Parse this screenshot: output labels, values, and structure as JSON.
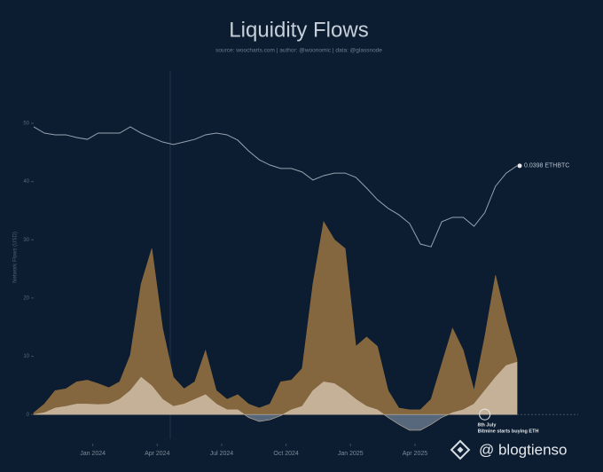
{
  "chart_data": {
    "type": "area",
    "title": "Liquidity Flows",
    "subtitle": "source: woocharts.com | author: @woonomic | data: @glassnode",
    "y_label": "Network Flows (USD)",
    "x": [
      -2.75,
      -2.25,
      -1.75,
      -1.25,
      -0.75,
      -0.25,
      0.25,
      0.75,
      1.25,
      1.75,
      2.25,
      2.75,
      3.25,
      3.75,
      4.25,
      4.75,
      5.25,
      5.75,
      6.25,
      6.75,
      7.25,
      7.75,
      8.25,
      8.75,
      9.25,
      9.75,
      10.25,
      10.75,
      11.25,
      11.75,
      12.25,
      12.75,
      13.25,
      13.75,
      14.25,
      14.75,
      15.25,
      15.75,
      16.25,
      16.75,
      17.25,
      17.75,
      18.25,
      18.75,
      19.25,
      19.75
    ],
    "xlim": [
      -2.75,
      19.75
    ],
    "xticks": [
      {
        "value": 0,
        "label": "Jan 2024"
      },
      {
        "value": 3,
        "label": "Apr 2024"
      },
      {
        "value": 6,
        "label": "Jul 2024"
      },
      {
        "value": 9,
        "label": "Oct 2024"
      },
      {
        "value": 12,
        "label": "Jan 2025"
      },
      {
        "value": 15,
        "label": "Apr 2025"
      }
    ],
    "ylim": [
      -5,
      50
    ],
    "yticks": [
      0,
      10,
      20,
      30,
      40,
      50
    ],
    "y2lim": [
      0.00272,
      0.06
    ],
    "y2log": true,
    "series": [
      {
        "color": "#8b6b40",
        "values": [
          0.3,
          1.8,
          4.1,
          4.4,
          5.6,
          5.9,
          5.3,
          4.6,
          5.6,
          10.2,
          22.4,
          28.5,
          14.8,
          6.4,
          4.4,
          5.6,
          11,
          4.1,
          2.6,
          3.4,
          1.8,
          1.1,
          1.8,
          5.6,
          5.9,
          7.9,
          22.4,
          33.1,
          30,
          28.5,
          11.7,
          13.3,
          11.7,
          4.1,
          1.1,
          0.8,
          0.8,
          2.6,
          8.7,
          14.8,
          11,
          4.1,
          13.3,
          23.9,
          16.3,
          9.5
        ]
      },
      {
        "color": "#c8b59d",
        "negative_color": "#5b6b80",
        "values": [
          0,
          0.3,
          1.1,
          1.4,
          1.8,
          1.8,
          1.7,
          1.8,
          2.6,
          4.1,
          6.4,
          4.9,
          2.6,
          1.4,
          1.8,
          2.6,
          3.4,
          1.8,
          0.8,
          0.8,
          -0.5,
          -1.2,
          -0.9,
          -0.2,
          0.8,
          1.4,
          4.1,
          5.6,
          5.3,
          4.1,
          2.6,
          1.4,
          0.8,
          -0.5,
          -1.7,
          -2.7,
          -2.7,
          -1.7,
          -0.5,
          0.3,
          0.8,
          1.8,
          4.1,
          6.4,
          8.4,
          9
        ]
      },
      {
        "type": "line",
        "axis": "y2",
        "color": "#97a2b0",
        "end_label": "0.0398 ETHBTC",
        "values": [
          0.058,
          0.0546,
          0.0537,
          0.0537,
          0.0523,
          0.0514,
          0.0546,
          0.0546,
          0.0546,
          0.058,
          0.0546,
          0.0523,
          0.0501,
          0.0489,
          0.0501,
          0.0514,
          0.0537,
          0.0546,
          0.0537,
          0.051,
          0.046,
          0.0422,
          0.0401,
          0.0388,
          0.0388,
          0.0375,
          0.0347,
          0.0362,
          0.0371,
          0.0371,
          0.0356,
          0.0321,
          0.0287,
          0.0264,
          0.0248,
          0.0228,
          0.0187,
          0.0182,
          0.0232,
          0.0242,
          0.0242,
          0.0222,
          0.0253,
          0.0327,
          0.0371,
          0.0398
        ]
      }
    ],
    "annotation": {
      "x": 18.25,
      "title": "8th July",
      "text": "Bitmine starts buying ETH"
    },
    "watermark": "@ blogtienso"
  }
}
